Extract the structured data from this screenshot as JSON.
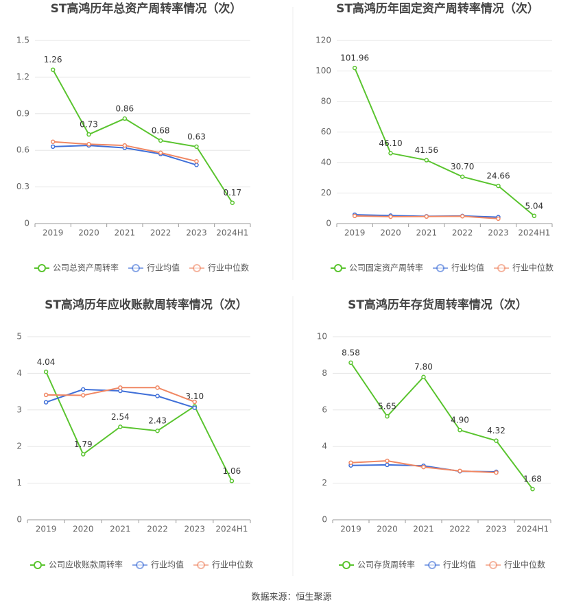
{
  "chart_data": [
    {
      "type": "line",
      "title": "ST高鸿历年总资产周转率情况（次）",
      "categories": [
        "2019",
        "2020",
        "2021",
        "2022",
        "2023",
        "2024H1"
      ],
      "ylim": [
        0,
        1.5
      ],
      "yticks": [
        0,
        0.3,
        0.6,
        0.9,
        1.2,
        1.5
      ],
      "grid": true,
      "series": [
        {
          "name": "公司总资产周转率",
          "color": "#5ac42f",
          "values": [
            1.26,
            0.73,
            0.86,
            0.68,
            0.63,
            0.17
          ],
          "value_labels": [
            "1.26",
            "0.73",
            "0.86",
            "0.68",
            "0.63",
            "0.17"
          ]
        },
        {
          "name": "行业均值",
          "color": "#3f6fd8",
          "values": [
            0.63,
            0.64,
            0.62,
            0.57,
            0.48,
            null
          ]
        },
        {
          "name": "行业中位数",
          "color": "#f08763",
          "values": [
            0.67,
            0.65,
            0.64,
            0.58,
            0.51,
            null
          ]
        }
      ]
    },
    {
      "type": "line",
      "title": "ST高鸿历年固定资产周转率情况（次）",
      "categories": [
        "2019",
        "2020",
        "2021",
        "2022",
        "2023",
        "2024H1"
      ],
      "ylim": [
        0,
        120
      ],
      "yticks": [
        0,
        20,
        40,
        60,
        80,
        100,
        120
      ],
      "grid": true,
      "series": [
        {
          "name": "公司固定资产周转率",
          "color": "#5ac42f",
          "values": [
            101.96,
            46.1,
            41.56,
            30.7,
            24.66,
            5.04
          ],
          "value_labels": [
            "101.96",
            "46.10",
            "41.56",
            "30.70",
            "24.66",
            "5.04"
          ]
        },
        {
          "name": "行业均值",
          "color": "#3f6fd8",
          "values": [
            5.8,
            5.2,
            4.8,
            5.0,
            4.2,
            null
          ]
        },
        {
          "name": "行业中位数",
          "color": "#f08763",
          "values": [
            5.0,
            4.5,
            4.6,
            4.8,
            3.2,
            null
          ]
        }
      ]
    },
    {
      "type": "line",
      "title": "ST高鸿历年应收账款周转率情况（次）",
      "categories": [
        "2019",
        "2020",
        "2021",
        "2022",
        "2023",
        "2024H1"
      ],
      "ylim": [
        0,
        5
      ],
      "yticks": [
        0,
        1,
        2,
        3,
        4,
        5
      ],
      "grid": true,
      "series": [
        {
          "name": "公司应收账款周转率",
          "color": "#5ac42f",
          "values": [
            4.04,
            1.79,
            2.54,
            2.43,
            3.1,
            1.06
          ],
          "value_labels": [
            "4.04",
            "1.79",
            "2.54",
            "2.43",
            "3.10",
            "1.06"
          ]
        },
        {
          "name": "行业均值",
          "color": "#3f6fd8",
          "values": [
            3.21,
            3.56,
            3.52,
            3.38,
            3.06,
            null
          ]
        },
        {
          "name": "行业中位数",
          "color": "#f08763",
          "values": [
            3.41,
            3.4,
            3.61,
            3.61,
            3.22,
            null
          ]
        }
      ]
    },
    {
      "type": "line",
      "title": "ST高鸿历年存货周转率情况（次）",
      "categories": [
        "2019",
        "2020",
        "2021",
        "2022",
        "2023",
        "2024H1"
      ],
      "ylim": [
        0,
        10
      ],
      "yticks": [
        0,
        2,
        4,
        6,
        8,
        10
      ],
      "grid": true,
      "series": [
        {
          "name": "公司存货周转率",
          "color": "#5ac42f",
          "values": [
            8.58,
            5.65,
            7.8,
            4.9,
            4.32,
            1.68
          ],
          "value_labels": [
            "8.58",
            "5.65",
            "7.80",
            "4.90",
            "4.32",
            "1.68"
          ]
        },
        {
          "name": "行业均值",
          "color": "#3f6fd8",
          "values": [
            2.97,
            3.0,
            2.95,
            2.65,
            2.62,
            null
          ]
        },
        {
          "name": "行业中位数",
          "color": "#f08763",
          "values": [
            3.12,
            3.22,
            2.88,
            2.67,
            2.58,
            null
          ]
        }
      ]
    }
  ],
  "source": "数据来源：恒生聚源"
}
